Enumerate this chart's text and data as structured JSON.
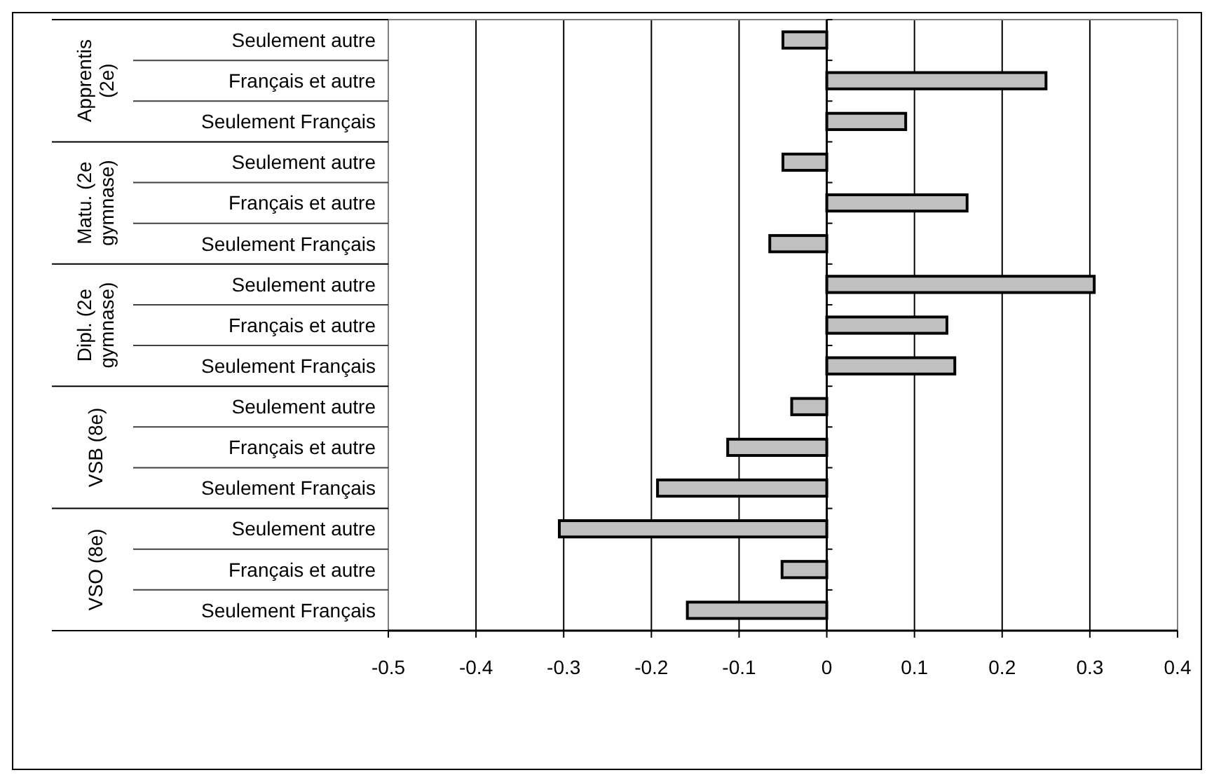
{
  "chart_data": {
    "type": "bar",
    "orientation": "horizontal",
    "categories": [
      "Seulement autre",
      "Français et autre",
      "Seulement Français",
      "Seulement autre",
      "Français et autre",
      "Seulement Français",
      "Seulement autre",
      "Français et autre",
      "Seulement Français",
      "Seulement autre",
      "Français et autre",
      "Seulement Français",
      "Seulement autre",
      "Français et autre",
      "Seulement Français"
    ],
    "values": [
      -0.05,
      0.25,
      0.09,
      -0.05,
      0.16,
      -0.065,
      0.305,
      0.137,
      0.146,
      -0.04,
      -0.113,
      -0.193,
      -0.305,
      -0.051,
      -0.159
    ],
    "color": "#c0c0c0",
    "xlim": [
      -0.5,
      0.4
    ],
    "xticks": [
      -0.5,
      -0.4,
      -0.3,
      -0.2,
      -0.1,
      0,
      0.1,
      0.2,
      0.3,
      0.4
    ],
    "grid": "x",
    "annotations": [
      "Apprentis (2e)",
      "Matu. (2e gymnase)",
      "Dipl. (2e gymnase)",
      "VSB (8e)",
      "VSO (8e)"
    ]
  }
}
